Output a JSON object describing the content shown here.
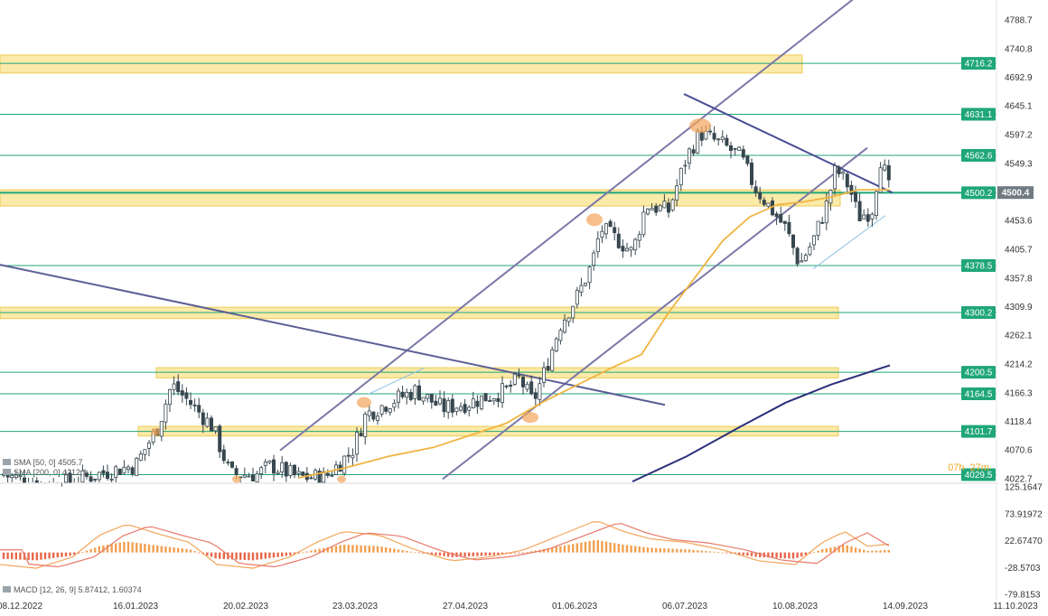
{
  "chart_data": {
    "type": "candlestick",
    "price_axis": {
      "ticks": [
        "4788.7",
        "4740.8",
        "4692.9",
        "4645.1",
        "4597.2",
        "4549.3",
        "4453.6",
        "4405.7",
        "4357.8",
        "4309.9",
        "4262.1",
        "4214.2",
        "4166.3",
        "4118.4",
        "4070.6",
        "4022.7"
      ],
      "range": [
        4018,
        4815
      ]
    },
    "macd_axis": {
      "ticks": [
        "125.1647",
        "73.91972",
        "22.67470",
        "-28.5703",
        "-79.8153"
      ],
      "range": [
        -79.8153,
        125.1647
      ]
    },
    "x_ticks": [
      "08.12.2022",
      "16.01.2023",
      "20.02.2023",
      "23.03.2023",
      "27.04.2023",
      "01.06.2023",
      "06.07.2023",
      "10.08.2023",
      "14.09.2023",
      "11.10.2023"
    ],
    "horizontal_levels": [
      {
        "value": 4716.2,
        "label": "4716.2"
      },
      {
        "value": 4631.1,
        "label": "4631.1"
      },
      {
        "value": 4562.6,
        "label": "4562.6"
      },
      {
        "value": 4500.2,
        "label": "4500.2"
      },
      {
        "value": 4378.5,
        "label": "4378.5"
      },
      {
        "value": 4300.2,
        "label": "4300.2"
      },
      {
        "value": 4200.5,
        "label": "4200.5"
      },
      {
        "value": 4164.5,
        "label": "4164.5"
      },
      {
        "value": 4101.7,
        "label": "4101.7"
      },
      {
        "value": 4029.5,
        "label": "4029.5"
      }
    ],
    "current_price": "4500.4",
    "zones": [
      {
        "from": 4700,
        "to": 4730
      },
      {
        "from": 4478,
        "to": 4505
      },
      {
        "from": 4290,
        "to": 4309
      },
      {
        "from": 4191,
        "to": 4208
      },
      {
        "from": 4094,
        "to": 4110
      }
    ],
    "indicators": {
      "sma50_label": "SMA [50, 0] 4505.7",
      "sma200_label": "SMA [200, 0] 4212.1",
      "macd_label": "MACD [12, 26, 9] 5.87412, 1.60374"
    },
    "countdown": {
      "hours": "07h",
      "minutes": "27m"
    },
    "colors": {
      "up": "#5b6b73",
      "down": "#37474f",
      "level": "#1fa67a",
      "zone_fill": "#fbe79a",
      "zone_stroke": "#e8c33a",
      "channel": "#7b78a8",
      "downtrend": "#4a4e96",
      "sma50": "#f0b440",
      "sma200": "#2b2f7a",
      "macd_pos": "#f0a050",
      "macd_neg": "#e8674a",
      "macd_line": "#f2a65a",
      "signal_line": "#e87a6a",
      "marker": "#f3a45a",
      "current_tag": "#6f7b80"
    }
  }
}
